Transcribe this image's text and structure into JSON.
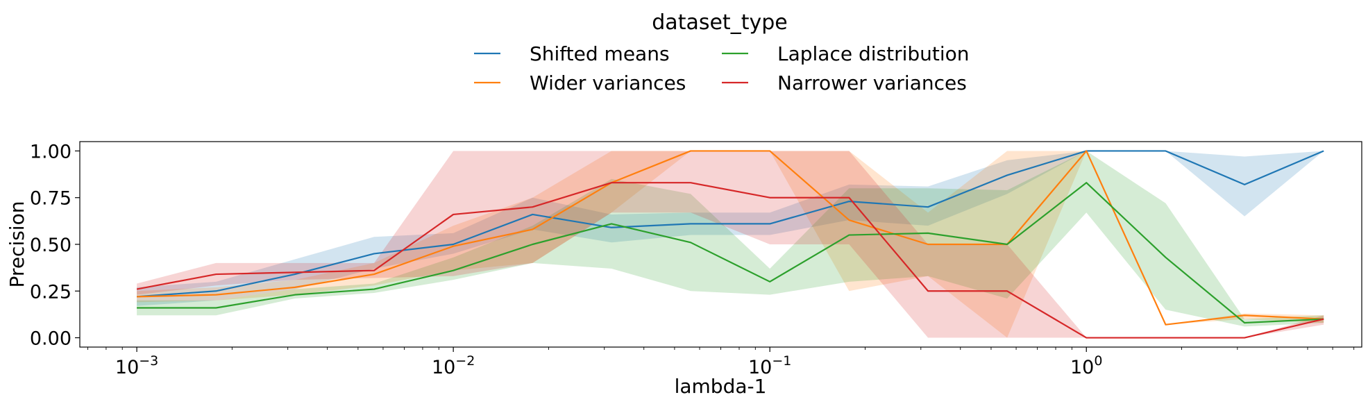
{
  "chart_data": {
    "type": "line",
    "title": "",
    "xlabel": "lambda-1",
    "ylabel": "Precision",
    "xscale": "log",
    "xlim_log10": [
      -3.18,
      0.87
    ],
    "ylim": [
      -0.05,
      1.05
    ],
    "x_ticks": [
      {
        "value": 0.001,
        "base": "10",
        "exp": "−3"
      },
      {
        "value": 0.01,
        "base": "10",
        "exp": "−2"
      },
      {
        "value": 0.1,
        "base": "10",
        "exp": "−1"
      },
      {
        "value": 1,
        "base": "10",
        "exp": "0"
      }
    ],
    "y_ticks": [
      {
        "value": 0.0,
        "label": "0.00"
      },
      {
        "value": 0.25,
        "label": "0.25"
      },
      {
        "value": 0.5,
        "label": "0.50"
      },
      {
        "value": 0.75,
        "label": "0.75"
      },
      {
        "value": 1.0,
        "label": "1.00"
      }
    ],
    "legend": {
      "title": "dataset_type",
      "position": "top-center",
      "columns": 2
    },
    "x": [
      0.001,
      0.00178,
      0.00316,
      0.00562,
      0.01,
      0.0178,
      0.0316,
      0.0562,
      0.1,
      0.178,
      0.316,
      0.562,
      1.0,
      1.78,
      3.16,
      5.62
    ],
    "series": [
      {
        "name": "Shifted means",
        "color": "#1f77b4",
        "values": [
          0.22,
          0.25,
          0.34,
          0.45,
          0.5,
          0.66,
          0.59,
          0.61,
          0.61,
          0.73,
          0.7,
          0.87,
          1.0,
          1.0,
          0.82,
          1.0
        ],
        "lower": [
          0.17,
          0.2,
          0.26,
          0.37,
          0.45,
          0.58,
          0.51,
          0.55,
          0.55,
          0.63,
          0.6,
          0.77,
          1.0,
          1.0,
          0.65,
          1.0
        ],
        "upper": [
          0.27,
          0.3,
          0.42,
          0.54,
          0.56,
          0.75,
          0.66,
          0.67,
          0.67,
          0.82,
          0.81,
          0.95,
          1.0,
          1.0,
          0.97,
          1.0
        ]
      },
      {
        "name": "Wider variances",
        "color": "#ff7f0e",
        "values": [
          0.22,
          0.23,
          0.27,
          0.34,
          0.49,
          0.58,
          0.83,
          1.0,
          1.0,
          0.63,
          0.5,
          0.5,
          1.0,
          0.07,
          0.12,
          0.1
        ],
        "lower": [
          0.19,
          0.2,
          0.23,
          0.28,
          0.36,
          0.4,
          0.67,
          1.0,
          1.0,
          0.25,
          0.33,
          0.0,
          1.0,
          0.07,
          0.1,
          0.08
        ],
        "upper": [
          0.25,
          0.27,
          0.31,
          0.4,
          0.6,
          0.75,
          1.0,
          1.0,
          1.0,
          1.0,
          0.67,
          1.0,
          1.0,
          0.07,
          0.13,
          0.12
        ]
      },
      {
        "name": "Laplace distribution",
        "color": "#2ca02c",
        "values": [
          0.16,
          0.16,
          0.23,
          0.26,
          0.36,
          0.5,
          0.61,
          0.51,
          0.3,
          0.55,
          0.56,
          0.5,
          0.83,
          0.43,
          0.08,
          0.1
        ],
        "lower": [
          0.12,
          0.12,
          0.21,
          0.24,
          0.31,
          0.4,
          0.37,
          0.25,
          0.23,
          0.3,
          0.33,
          0.21,
          0.67,
          0.15,
          0.06,
          0.08
        ],
        "upper": [
          0.2,
          0.2,
          0.26,
          0.29,
          0.43,
          0.6,
          0.85,
          0.77,
          0.37,
          0.8,
          0.8,
          0.79,
          1.0,
          0.72,
          0.1,
          0.12
        ]
      },
      {
        "name": "Narrower variances",
        "color": "#d62728",
        "values": [
          0.26,
          0.34,
          0.35,
          0.36,
          0.66,
          0.7,
          0.83,
          0.83,
          0.75,
          0.75,
          0.25,
          0.25,
          0.0,
          0.0,
          0.0,
          0.1
        ],
        "lower": [
          0.23,
          0.28,
          0.31,
          0.32,
          0.33,
          0.4,
          0.67,
          0.67,
          0.5,
          0.5,
          0.0,
          0.0,
          0.0,
          0.0,
          0.0,
          0.07
        ],
        "upper": [
          0.29,
          0.4,
          0.4,
          0.4,
          1.0,
          1.0,
          1.0,
          1.0,
          1.0,
          1.0,
          0.5,
          0.5,
          0.0,
          0.0,
          0.0,
          0.12
        ]
      }
    ]
  }
}
